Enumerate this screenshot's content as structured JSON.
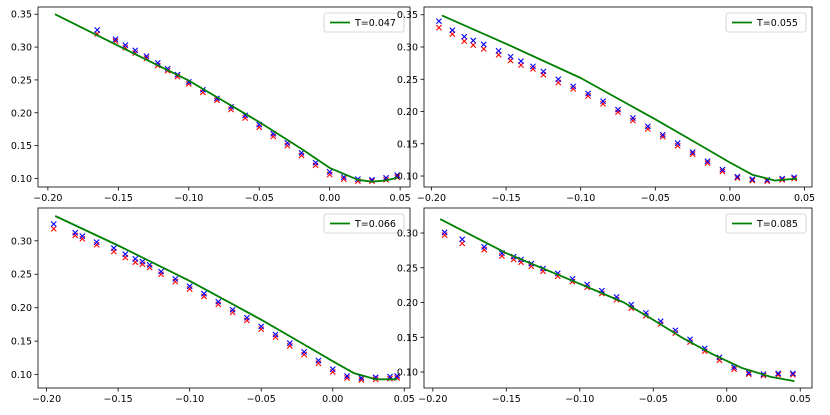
{
  "chart_data": [
    {
      "type": "scatter",
      "legend": "T=0.047",
      "legend_position": "top-right",
      "grid": false,
      "xlim": [
        -0.207,
        0.057
      ],
      "ylim": [
        0.087,
        0.361
      ],
      "xticks": [
        -0.2,
        -0.15,
        -0.1,
        -0.05,
        0.0,
        0.05
      ],
      "xtick_labels": [
        "−0.20",
        "−0.15",
        "−0.10",
        "−0.05",
        "0.00",
        "0.05"
      ],
      "yticks": [
        0.1,
        0.15,
        0.2,
        0.25,
        0.3,
        0.35
      ],
      "ytick_labels": [
        "0.10",
        "0.15",
        "0.20",
        "0.25",
        "0.30",
        "0.35"
      ],
      "series": [
        {
          "marker": "x",
          "color": "#ff0000",
          "x": [
            -0.165,
            -0.152,
            -0.145,
            -0.138,
            -0.13,
            -0.122,
            -0.115,
            -0.108,
            -0.1,
            -0.09,
            -0.08,
            -0.07,
            -0.06,
            -0.05,
            -0.04,
            -0.03,
            -0.02,
            -0.01,
            0.0,
            0.01,
            0.02,
            0.03,
            0.04,
            0.048
          ],
          "y": [
            0.32,
            0.309,
            0.299,
            0.291,
            0.283,
            0.272,
            0.264,
            0.255,
            0.244,
            0.231,
            0.219,
            0.205,
            0.192,
            0.178,
            0.164,
            0.15,
            0.135,
            0.12,
            0.106,
            0.099,
            0.096,
            0.096,
            0.098,
            0.102
          ]
        },
        {
          "marker": "x",
          "color": "#0000ff",
          "x": [
            -0.165,
            -0.152,
            -0.145,
            -0.138,
            -0.13,
            -0.122,
            -0.115,
            -0.108,
            -0.1,
            -0.09,
            -0.08,
            -0.07,
            -0.06,
            -0.05,
            -0.04,
            -0.03,
            -0.02,
            -0.01,
            0.0,
            0.01,
            0.02,
            0.03,
            0.04,
            0.048
          ],
          "y": [
            0.326,
            0.312,
            0.303,
            0.295,
            0.286,
            0.276,
            0.267,
            0.258,
            0.247,
            0.235,
            0.222,
            0.209,
            0.196,
            0.182,
            0.168,
            0.154,
            0.139,
            0.124,
            0.11,
            0.102,
            0.099,
            0.098,
            0.101,
            0.105
          ]
        },
        {
          "type": "line",
          "color": "#008000",
          "x": [
            -0.195,
            -0.15,
            -0.1,
            -0.05,
            -0.02,
            0.0,
            0.02,
            0.03,
            0.04,
            0.048
          ],
          "y": [
            0.35,
            0.302,
            0.249,
            0.186,
            0.145,
            0.116,
            0.098,
            0.095,
            0.097,
            0.101
          ]
        }
      ]
    },
    {
      "type": "scatter",
      "legend": "T=0.055",
      "legend_position": "top-right",
      "grid": false,
      "xlim": [
        -0.205,
        0.055
      ],
      "ylim": [
        0.083,
        0.362
      ],
      "xticks": [
        -0.2,
        -0.15,
        -0.1,
        -0.05,
        0.0,
        0.05
      ],
      "xtick_labels": [
        "−0.20",
        "−0.15",
        "−0.10",
        "−0.05",
        "0.00",
        "0.05"
      ],
      "yticks": [
        0.1,
        0.15,
        0.2,
        0.25,
        0.3,
        0.35
      ],
      "ytick_labels": [
        "0.10",
        "0.15",
        "0.20",
        "0.25",
        "0.30",
        "0.35"
      ],
      "series": [
        {
          "marker": "x",
          "color": "#ff0000",
          "x": [
            -0.195,
            -0.186,
            -0.178,
            -0.172,
            -0.165,
            -0.155,
            -0.147,
            -0.14,
            -0.132,
            -0.125,
            -0.115,
            -0.105,
            -0.095,
            -0.085,
            -0.075,
            -0.065,
            -0.055,
            -0.045,
            -0.035,
            -0.025,
            -0.015,
            -0.005,
            0.005,
            0.015,
            0.025,
            0.035,
            0.043
          ],
          "y": [
            0.33,
            0.32,
            0.309,
            0.303,
            0.297,
            0.288,
            0.279,
            0.272,
            0.266,
            0.257,
            0.245,
            0.235,
            0.224,
            0.212,
            0.199,
            0.186,
            0.173,
            0.161,
            0.147,
            0.134,
            0.12,
            0.107,
            0.097,
            0.093,
            0.092,
            0.094,
            0.096
          ]
        },
        {
          "marker": "x",
          "color": "#0000ff",
          "x": [
            -0.195,
            -0.186,
            -0.178,
            -0.172,
            -0.165,
            -0.155,
            -0.147,
            -0.14,
            -0.132,
            -0.125,
            -0.115,
            -0.105,
            -0.095,
            -0.085,
            -0.075,
            -0.065,
            -0.055,
            -0.045,
            -0.035,
            -0.025,
            -0.015,
            -0.005,
            0.005,
            0.015,
            0.025,
            0.035,
            0.043
          ],
          "y": [
            0.34,
            0.326,
            0.316,
            0.31,
            0.304,
            0.294,
            0.285,
            0.278,
            0.27,
            0.262,
            0.25,
            0.239,
            0.228,
            0.216,
            0.203,
            0.19,
            0.177,
            0.164,
            0.151,
            0.137,
            0.123,
            0.11,
            0.099,
            0.095,
            0.094,
            0.096,
            0.098
          ]
        },
        {
          "type": "line",
          "color": "#008000",
          "x": [
            -0.193,
            -0.15,
            -0.1,
            -0.05,
            -0.02,
            0.0,
            0.015,
            0.03,
            0.045
          ],
          "y": [
            0.349,
            0.305,
            0.252,
            0.188,
            0.148,
            0.121,
            0.102,
            0.093,
            0.096
          ]
        }
      ]
    },
    {
      "type": "scatter",
      "legend": "T=0.066",
      "legend_position": "top-right",
      "grid": false,
      "xlim": [
        -0.206,
        0.054
      ],
      "ylim": [
        0.08,
        0.349
      ],
      "xticks": [
        -0.2,
        -0.15,
        -0.1,
        -0.05,
        0.0,
        0.05
      ],
      "xtick_labels": [
        "−0.20",
        "−0.15",
        "−0.10",
        "−0.05",
        "0.00",
        "0.05"
      ],
      "yticks": [
        0.1,
        0.15,
        0.2,
        0.25,
        0.3
      ],
      "ytick_labels": [
        "0.10",
        "0.15",
        "0.20",
        "0.25",
        "0.30"
      ],
      "series": [
        {
          "marker": "x",
          "color": "#ff0000",
          "x": [
            -0.195,
            -0.18,
            -0.175,
            -0.165,
            -0.153,
            -0.145,
            -0.138,
            -0.133,
            -0.128,
            -0.12,
            -0.11,
            -0.1,
            -0.09,
            -0.08,
            -0.07,
            -0.06,
            -0.05,
            -0.04,
            -0.03,
            -0.02,
            -0.01,
            0.0,
            0.01,
            0.02,
            0.03,
            0.04,
            0.045
          ],
          "y": [
            0.318,
            0.308,
            0.303,
            0.294,
            0.284,
            0.275,
            0.268,
            0.265,
            0.26,
            0.25,
            0.239,
            0.228,
            0.217,
            0.205,
            0.193,
            0.181,
            0.168,
            0.156,
            0.143,
            0.13,
            0.117,
            0.104,
            0.095,
            0.092,
            0.093,
            0.094,
            0.095
          ]
        },
        {
          "marker": "x",
          "color": "#0000ff",
          "x": [
            -0.195,
            -0.18,
            -0.175,
            -0.165,
            -0.153,
            -0.145,
            -0.138,
            -0.133,
            -0.128,
            -0.12,
            -0.11,
            -0.1,
            -0.09,
            -0.08,
            -0.07,
            -0.06,
            -0.05,
            -0.04,
            -0.03,
            -0.02,
            -0.01,
            0.0,
            0.01,
            0.02,
            0.03,
            0.04,
            0.045
          ],
          "y": [
            0.325,
            0.312,
            0.307,
            0.298,
            0.289,
            0.28,
            0.273,
            0.269,
            0.264,
            0.254,
            0.243,
            0.232,
            0.221,
            0.209,
            0.197,
            0.185,
            0.172,
            0.16,
            0.147,
            0.134,
            0.121,
            0.108,
            0.098,
            0.095,
            0.096,
            0.097,
            0.098
          ]
        },
        {
          "type": "line",
          "color": "#008000",
          "x": [
            -0.194,
            -0.15,
            -0.1,
            -0.05,
            -0.02,
            0.0,
            0.015,
            0.03,
            0.045
          ],
          "y": [
            0.337,
            0.293,
            0.24,
            0.182,
            0.145,
            0.12,
            0.102,
            0.093,
            0.093
          ]
        }
      ]
    },
    {
      "type": "scatter",
      "legend": "T=0.085",
      "legend_position": "top-right",
      "grid": false,
      "xlim": [
        -0.206,
        0.058
      ],
      "ylim": [
        0.077,
        0.336
      ],
      "xticks": [
        -0.2,
        -0.15,
        -0.1,
        -0.05,
        0.0,
        0.05
      ],
      "xtick_labels": [
        "−0.20",
        "−0.15",
        "−0.10",
        "−0.05",
        "0.00",
        "0.05"
      ],
      "yticks": [
        0.1,
        0.15,
        0.2,
        0.25,
        0.3
      ],
      "ytick_labels": [
        "0.10",
        "0.15",
        "0.20",
        "0.25",
        "0.30"
      ],
      "series": [
        {
          "marker": "x",
          "color": "#ff0000",
          "x": [
            -0.192,
            -0.18,
            -0.165,
            -0.153,
            -0.145,
            -0.14,
            -0.133,
            -0.125,
            -0.115,
            -0.105,
            -0.095,
            -0.085,
            -0.075,
            -0.065,
            -0.055,
            -0.045,
            -0.035,
            -0.025,
            -0.015,
            -0.005,
            0.005,
            0.015,
            0.025,
            0.035,
            0.045
          ],
          "y": [
            0.297,
            0.285,
            0.276,
            0.267,
            0.262,
            0.258,
            0.252,
            0.245,
            0.238,
            0.23,
            0.222,
            0.213,
            0.204,
            0.192,
            0.181,
            0.169,
            0.156,
            0.143,
            0.13,
            0.117,
            0.104,
            0.097,
            0.095,
            0.096,
            0.096
          ]
        },
        {
          "marker": "x",
          "color": "#0000ff",
          "x": [
            -0.192,
            -0.18,
            -0.165,
            -0.153,
            -0.145,
            -0.14,
            -0.133,
            -0.125,
            -0.115,
            -0.105,
            -0.095,
            -0.085,
            -0.075,
            -0.065,
            -0.055,
            -0.045,
            -0.035,
            -0.025,
            -0.015,
            -0.005,
            0.005,
            0.015,
            0.025,
            0.035,
            0.045
          ],
          "y": [
            0.301,
            0.291,
            0.28,
            0.271,
            0.266,
            0.262,
            0.256,
            0.249,
            0.242,
            0.234,
            0.226,
            0.217,
            0.208,
            0.197,
            0.185,
            0.173,
            0.16,
            0.147,
            0.134,
            0.121,
            0.107,
            0.099,
            0.097,
            0.098,
            0.098
          ]
        },
        {
          "type": "line",
          "color": "#008000",
          "x": [
            -0.195,
            -0.15,
            -0.1,
            -0.07,
            -0.05,
            -0.03,
            -0.01,
            0.01,
            0.03,
            0.046
          ],
          "y": [
            0.32,
            0.271,
            0.227,
            0.2,
            0.175,
            0.149,
            0.126,
            0.106,
            0.093,
            0.087
          ]
        }
      ]
    }
  ]
}
